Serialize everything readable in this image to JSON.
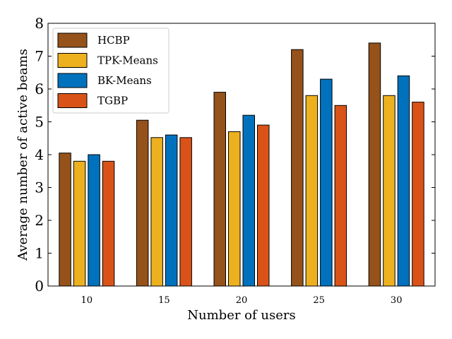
{
  "chart_data": {
    "type": "bar",
    "xlabel": "Number of users",
    "ylabel": "Average number of active beams",
    "categories": [
      "10",
      "15",
      "20",
      "25",
      "30"
    ],
    "ylim": [
      0,
      8
    ],
    "yticks": [
      "0",
      "1",
      "2",
      "3",
      "4",
      "5",
      "6",
      "7",
      "8"
    ],
    "legend_position": "top-left",
    "grid": false,
    "series": [
      {
        "name": "HCBP",
        "color": "#95521a",
        "values": [
          4.05,
          5.05,
          5.9,
          7.2,
          7.4
        ]
      },
      {
        "name": "TPK-Means",
        "color": "#edb120",
        "values": [
          3.8,
          4.52,
          4.7,
          5.8,
          5.8
        ]
      },
      {
        "name": "BK-Means",
        "color": "#0072bd",
        "values": [
          4.0,
          4.6,
          5.2,
          6.3,
          6.4
        ]
      },
      {
        "name": "TGBP",
        "color": "#d95319",
        "values": [
          3.8,
          4.52,
          4.9,
          5.5,
          5.6
        ]
      }
    ]
  }
}
